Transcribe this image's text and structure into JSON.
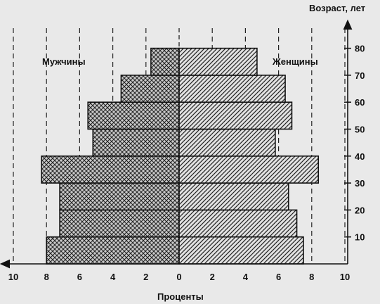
{
  "chart_data": {
    "type": "bar",
    "subtype": "population-pyramid",
    "title": "",
    "xlabel": "Проценты",
    "ylabel": "Возраст, лет",
    "xlim": [
      -10,
      10
    ],
    "ylim": [
      0,
      85
    ],
    "x_ticks": [
      "10",
      "8",
      "6",
      "4",
      "2",
      "0",
      "2",
      "4",
      "6",
      "8",
      "10"
    ],
    "y_ticks": [
      "10",
      "20",
      "30",
      "40",
      "50",
      "60",
      "70",
      "80"
    ],
    "age_groups": [
      {
        "from": 0,
        "to": 10
      },
      {
        "from": 10,
        "to": 20
      },
      {
        "from": 20,
        "to": 30
      },
      {
        "from": 30,
        "to": 40
      },
      {
        "from": 40,
        "to": 50
      },
      {
        "from": 50,
        "to": 60
      },
      {
        "from": 60,
        "to": 70
      },
      {
        "from": 70,
        "to": 80
      }
    ],
    "series": [
      {
        "name": "Мужчины",
        "side": "left",
        "pattern": "crosshatch",
        "values": [
          8.0,
          7.2,
          7.2,
          8.3,
          5.2,
          5.5,
          3.5,
          1.7
        ]
      },
      {
        "name": "Женщины",
        "side": "right",
        "pattern": "diagonal",
        "values": [
          7.5,
          7.1,
          6.6,
          8.4,
          5.8,
          6.8,
          6.4,
          4.7
        ]
      }
    ],
    "grid": "vertical-dashed",
    "legend": "labels inside plot"
  }
}
